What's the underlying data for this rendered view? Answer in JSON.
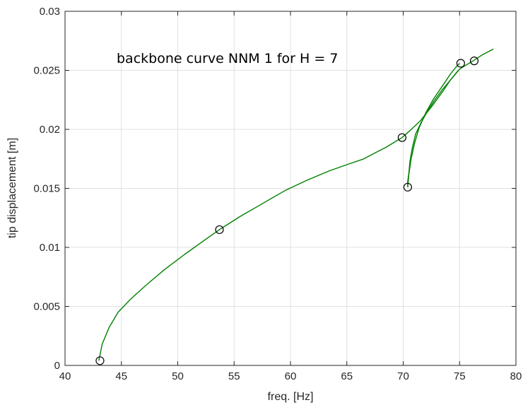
{
  "chart_data": {
    "type": "line",
    "title": "",
    "xlabel": "freq. [Hz]",
    "ylabel": "tip displacement [m]",
    "xlim": [
      40,
      80
    ],
    "ylim": [
      0,
      0.03
    ],
    "xticks": [
      "40",
      "45",
      "50",
      "55",
      "60",
      "65",
      "70",
      "75",
      "80"
    ],
    "yticks": [
      "0",
      "0.005",
      "0.01",
      "0.015",
      "0.02",
      "0.025",
      "0.03"
    ],
    "grid": true,
    "annotation": "backbone curve NNM 1 for H = 7",
    "line_color": "#008000",
    "marker_color": "#000000",
    "series": [
      {
        "x": [
          43.0,
          43.3,
          43.9,
          44.7,
          45.8,
          47.2,
          48.8,
          50.6,
          52.5,
          53.7,
          55.5,
          57.5,
          59.5,
          61.5,
          63.5,
          65.3,
          66.5,
          67.5,
          68.5,
          69.2,
          69.9,
          70.6,
          71.5,
          72.5,
          73.5,
          74.2,
          74.8,
          75.0,
          75.5,
          76.2,
          77.0,
          78.0
        ],
        "y": [
          0.0004,
          0.0018,
          0.0032,
          0.0045,
          0.0056,
          0.0068,
          0.0081,
          0.0094,
          0.0107,
          0.0115,
          0.0126,
          0.0137,
          0.0148,
          0.0157,
          0.0165,
          0.0171,
          0.0175,
          0.018,
          0.0185,
          0.0189,
          0.0193,
          0.0199,
          0.0207,
          0.0219,
          0.0232,
          0.0242,
          0.0249,
          0.0251,
          0.0254,
          0.0258,
          0.0263,
          0.0268
        ]
      },
      {
        "x": [
          75.0,
          74.3,
          73.5,
          72.8,
          72.2,
          71.6,
          71.1,
          70.8,
          70.6,
          70.5,
          70.4,
          70.4
        ],
        "y": [
          0.0251,
          0.0243,
          0.0234,
          0.0225,
          0.0216,
          0.0206,
          0.0196,
          0.0184,
          0.0173,
          0.0163,
          0.0156,
          0.0151
        ]
      },
      {
        "x": [
          70.4,
          70.5,
          70.7,
          71.0,
          71.4,
          72.0,
          72.7,
          73.5,
          74.2,
          74.7,
          75.0
        ],
        "y": [
          0.0151,
          0.0162,
          0.0175,
          0.0188,
          0.0201,
          0.0214,
          0.0226,
          0.0237,
          0.0247,
          0.0253,
          0.0256
        ]
      }
    ],
    "markers": {
      "x": [
        43.1,
        53.7,
        69.9,
        70.4,
        75.1,
        76.3
      ],
      "y": [
        0.0004,
        0.0115,
        0.0193,
        0.0151,
        0.0256,
        0.0258
      ]
    }
  }
}
